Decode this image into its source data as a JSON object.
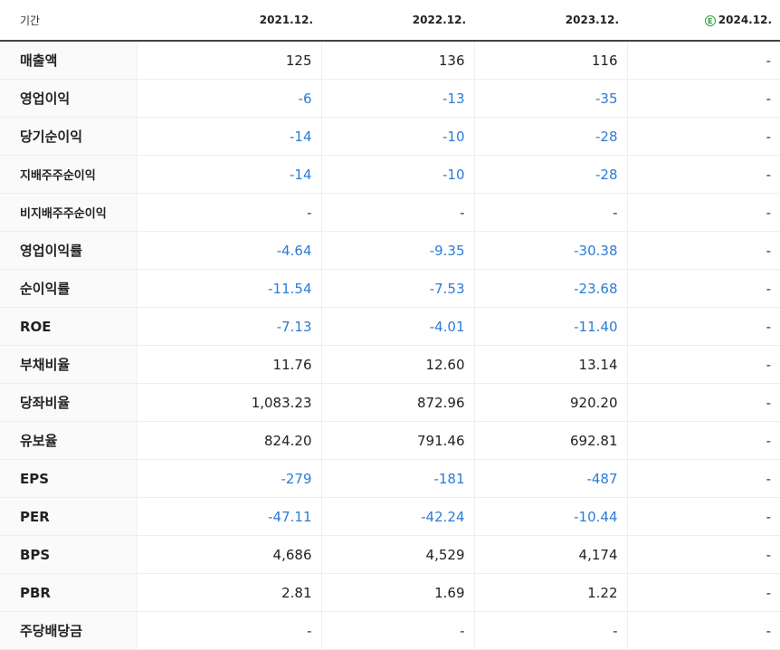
{
  "header": {
    "label": "기간",
    "periods": [
      "2021.12.",
      "2022.12.",
      "2023.12.",
      "2024.12."
    ],
    "estimate_badge": "E"
  },
  "rows": [
    {
      "label": "매출액",
      "values": [
        "125",
        "136",
        "116",
        "-"
      ]
    },
    {
      "label": "영업이익",
      "values": [
        "-6",
        "-13",
        "-35",
        "-"
      ]
    },
    {
      "label": "당기순이익",
      "values": [
        "-14",
        "-10",
        "-28",
        "-"
      ]
    },
    {
      "label": "지배주주순이익",
      "values": [
        "-14",
        "-10",
        "-28",
        "-"
      ]
    },
    {
      "label": "비지배주주순이익",
      "values": [
        "-",
        "-",
        "-",
        "-"
      ]
    },
    {
      "label": "영업이익률",
      "values": [
        "-4.64",
        "-9.35",
        "-30.38",
        "-"
      ]
    },
    {
      "label": "순이익률",
      "values": [
        "-11.54",
        "-7.53",
        "-23.68",
        "-"
      ]
    },
    {
      "label": "ROE",
      "values": [
        "-7.13",
        "-4.01",
        "-11.40",
        "-"
      ]
    },
    {
      "label": "부채비율",
      "values": [
        "11.76",
        "12.60",
        "13.14",
        "-"
      ]
    },
    {
      "label": "당좌비율",
      "values": [
        "1,083.23",
        "872.96",
        "920.20",
        "-"
      ]
    },
    {
      "label": "유보율",
      "values": [
        "824.20",
        "791.46",
        "692.81",
        "-"
      ]
    },
    {
      "label": "EPS",
      "values": [
        "-279",
        "-181",
        "-487",
        "-"
      ]
    },
    {
      "label": "PER",
      "values": [
        "-47.11",
        "-42.24",
        "-10.44",
        "-"
      ]
    },
    {
      "label": "BPS",
      "values": [
        "4,686",
        "4,529",
        "4,174",
        "-"
      ]
    },
    {
      "label": "PBR",
      "values": [
        "2.81",
        "1.69",
        "1.22",
        "-"
      ]
    },
    {
      "label": "주당배당금",
      "values": [
        "-",
        "-",
        "-",
        "-"
      ]
    }
  ],
  "colors": {
    "negative": "#2b7bd6",
    "estimate": "#2a9d3f"
  }
}
